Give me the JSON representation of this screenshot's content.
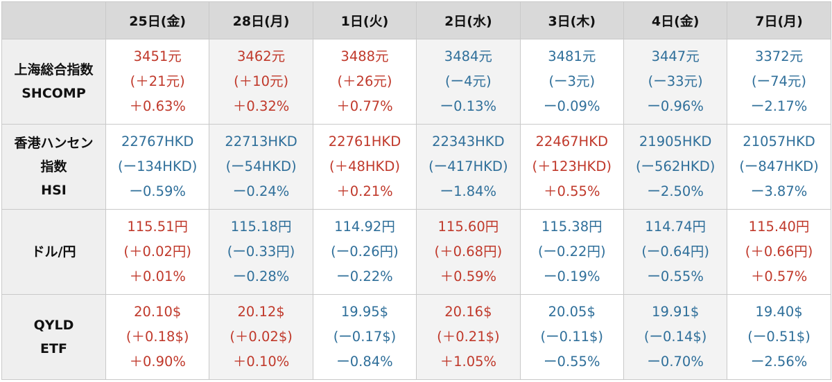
{
  "header": {
    "days": [
      "25日(金)",
      "28日(月)",
      "1日(火)",
      "2日(水)",
      "3日(木)",
      "4日(金)",
      "7日(月)"
    ]
  },
  "colors": {
    "up": "#c0392b",
    "down": "#2f6f9a"
  },
  "rows": [
    {
      "label_lines": [
        "上海総合指数",
        "SHCOMP"
      ],
      "cells": [
        {
          "trend": "up",
          "price": "3451元",
          "change": "(＋21元)",
          "pct": "＋0.63%"
        },
        {
          "trend": "up",
          "price": "3462元",
          "change": "(＋10元)",
          "pct": "＋0.32%"
        },
        {
          "trend": "up",
          "price": "3488元",
          "change": "(＋26元)",
          "pct": "＋0.77%"
        },
        {
          "trend": "down",
          "price": "3484元",
          "change": "(ー4元)",
          "pct": "ー0.13%"
        },
        {
          "trend": "down",
          "price": "3481元",
          "change": "(ー3元)",
          "pct": "ー0.09%"
        },
        {
          "trend": "down",
          "price": "3447元",
          "change": "(ー33元)",
          "pct": "ー0.96%"
        },
        {
          "trend": "down",
          "price": "3372元",
          "change": "(ー74元)",
          "pct": "ー2.17%"
        }
      ]
    },
    {
      "label_lines": [
        "香港ハンセン",
        "指数",
        "HSI"
      ],
      "cells": [
        {
          "trend": "down",
          "price": "22767HKD",
          "change": "(ー134HKD)",
          "pct": "ー0.59%"
        },
        {
          "trend": "down",
          "price": "22713HKD",
          "change": "(ー54HKD)",
          "pct": "ー0.24%"
        },
        {
          "trend": "up",
          "price": "22761HKD",
          "change": "(＋48HKD)",
          "pct": "＋0.21%"
        },
        {
          "trend": "down",
          "price": "22343HKD",
          "change": "(ー417HKD)",
          "pct": "ー1.84%"
        },
        {
          "trend": "up",
          "price": "22467HKD",
          "change": "(＋123HKD)",
          "pct": "＋0.55%"
        },
        {
          "trend": "down",
          "price": "21905HKD",
          "change": "(ー562HKD)",
          "pct": "ー2.50%"
        },
        {
          "trend": "down",
          "price": "21057HKD",
          "change": "(ー847HKD)",
          "pct": "ー3.87%"
        }
      ]
    },
    {
      "label_lines": [
        "ドル/円"
      ],
      "cells": [
        {
          "trend": "up",
          "price": "115.51円",
          "change": "(＋0.02円)",
          "pct": "＋0.01%"
        },
        {
          "trend": "down",
          "price": "115.18円",
          "change": "(ー0.33円)",
          "pct": "ー0.28%"
        },
        {
          "trend": "down",
          "price": "114.92円",
          "change": "(ー0.26円)",
          "pct": "ー0.22%"
        },
        {
          "trend": "up",
          "price": "115.60円",
          "change": "(＋0.68円)",
          "pct": "＋0.59%"
        },
        {
          "trend": "down",
          "price": "115.38円",
          "change": "(ー0.22円)",
          "pct": "ー0.19%"
        },
        {
          "trend": "down",
          "price": "114.74円",
          "change": "(ー0.64円)",
          "pct": "ー0.55%"
        },
        {
          "trend": "up",
          "price": "115.40円",
          "change": "(＋0.66円)",
          "pct": "＋0.57%"
        }
      ]
    },
    {
      "label_lines": [
        "QYLD",
        "ETF"
      ],
      "cells": [
        {
          "trend": "up",
          "price": "20.10$",
          "change": "(＋0.18$)",
          "pct": "＋0.90%"
        },
        {
          "trend": "up",
          "price": "20.12$",
          "change": "(＋0.02$)",
          "pct": "＋0.10%"
        },
        {
          "trend": "down",
          "price": "19.95$",
          "change": "(ー0.17$)",
          "pct": "ー0.84%"
        },
        {
          "trend": "up",
          "price": "20.16$",
          "change": "(＋0.21$)",
          "pct": "＋1.05%"
        },
        {
          "trend": "down",
          "price": "20.05$",
          "change": "(ー0.11$)",
          "pct": "ー0.55%"
        },
        {
          "trend": "down",
          "price": "19.91$",
          "change": "(ー0.14$)",
          "pct": "ー0.70%"
        },
        {
          "trend": "down",
          "price": "19.40$",
          "change": "(ー0.51$)",
          "pct": "ー2.56%"
        }
      ]
    }
  ]
}
